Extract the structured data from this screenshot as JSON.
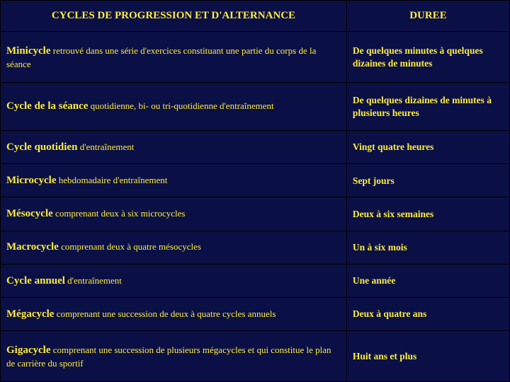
{
  "table": {
    "background_color": "#0a1045",
    "text_color": "#ffeb3b",
    "border_color": "#000000",
    "header": {
      "cycle": "CYCLES DE PROGRESSION ET D'ALTERNANCE",
      "duree": "DUREE"
    },
    "rows": [
      {
        "term": "Minicycle",
        "desc": " retrouvé dans une série d'exercices constituant une partie du corps de la séance",
        "duree": "De quelques minutes à quelques dizaines de minutes"
      },
      {
        "term": "Cycle de la séance",
        "desc": " quotidienne, bi- ou tri-quotidienne d'entraînement",
        "duree": "De quelques dizaines de minutes à plusieurs heures"
      },
      {
        "term": "Cycle quotidien",
        "desc": " d'entraînement",
        "duree": "Vingt quatre heures"
      },
      {
        "term": "Microcycle",
        "desc": " hebdomadaire d'entraînement",
        "duree": "Sept jours"
      },
      {
        "term": "Mésocycle",
        "desc": " comprenant deux à six microcycles",
        "duree": "Deux à six semaines"
      },
      {
        "term": "Macrocycle",
        "desc": " comprenant deux à quatre mésocycles",
        "duree": "Un à six mois"
      },
      {
        "term": "Cycle annuel",
        "desc": " d'entraînement",
        "duree": "Une année"
      },
      {
        "term": "Mégacycle",
        "desc": " comprenant une succession de deux à quatre cycles annuels",
        "duree": "Deux à quatre ans"
      },
      {
        "term": "Gigacycle",
        "desc": " comprenant une succession de plusieurs mégacycles et qui constitue le plan de carrière du sportif",
        "duree": "Huit ans et plus"
      }
    ]
  }
}
